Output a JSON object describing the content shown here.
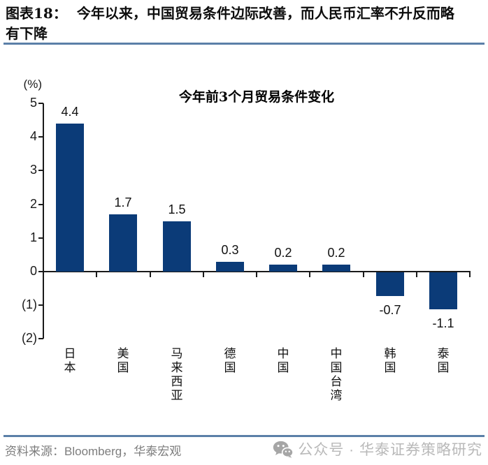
{
  "header": {
    "tag": "图表18：",
    "title_line1": "今年以来，中国贸易条件边际改善，而人民币汇率不升反而略",
    "title_line2": "有下降"
  },
  "chart_data": {
    "type": "bar",
    "title": "今年前3个月贸易条件变化",
    "unit_label": "(%)",
    "categories": [
      "日本",
      "美国",
      "马来西亚",
      "德国",
      "中国",
      "中国台湾",
      "韩国",
      "泰国"
    ],
    "values": [
      4.4,
      1.7,
      1.5,
      0.3,
      0.2,
      0.2,
      -0.7,
      -1.1
    ],
    "value_labels": [
      "4.4",
      "1.7",
      "1.5",
      "0.3",
      "0.2",
      "0.2",
      "-0.7",
      "-1.1"
    ],
    "ylim": [
      -2,
      5
    ],
    "ytick_values": [
      5,
      4,
      3,
      2,
      1,
      0,
      -1,
      -2
    ],
    "ytick_labels": [
      "5",
      "4",
      "3",
      "2",
      "1",
      "0",
      "(1)",
      "(2)"
    ],
    "bar_color": "#0b3b78",
    "axis_color": "#1a1a1a",
    "grid": "off",
    "legend": "none"
  },
  "footer": {
    "source_prefix": "资料来源：",
    "source_name": "Bloomberg",
    "source_suffix": "，华泰宏观",
    "account_label": "公众号 · 华泰证券策略研究"
  },
  "colors": {
    "accent_rule": "#5b80a8",
    "bar": "#0b3b78",
    "source_text": "#7d7d7d",
    "credit_text": "#b9b9b9"
  }
}
